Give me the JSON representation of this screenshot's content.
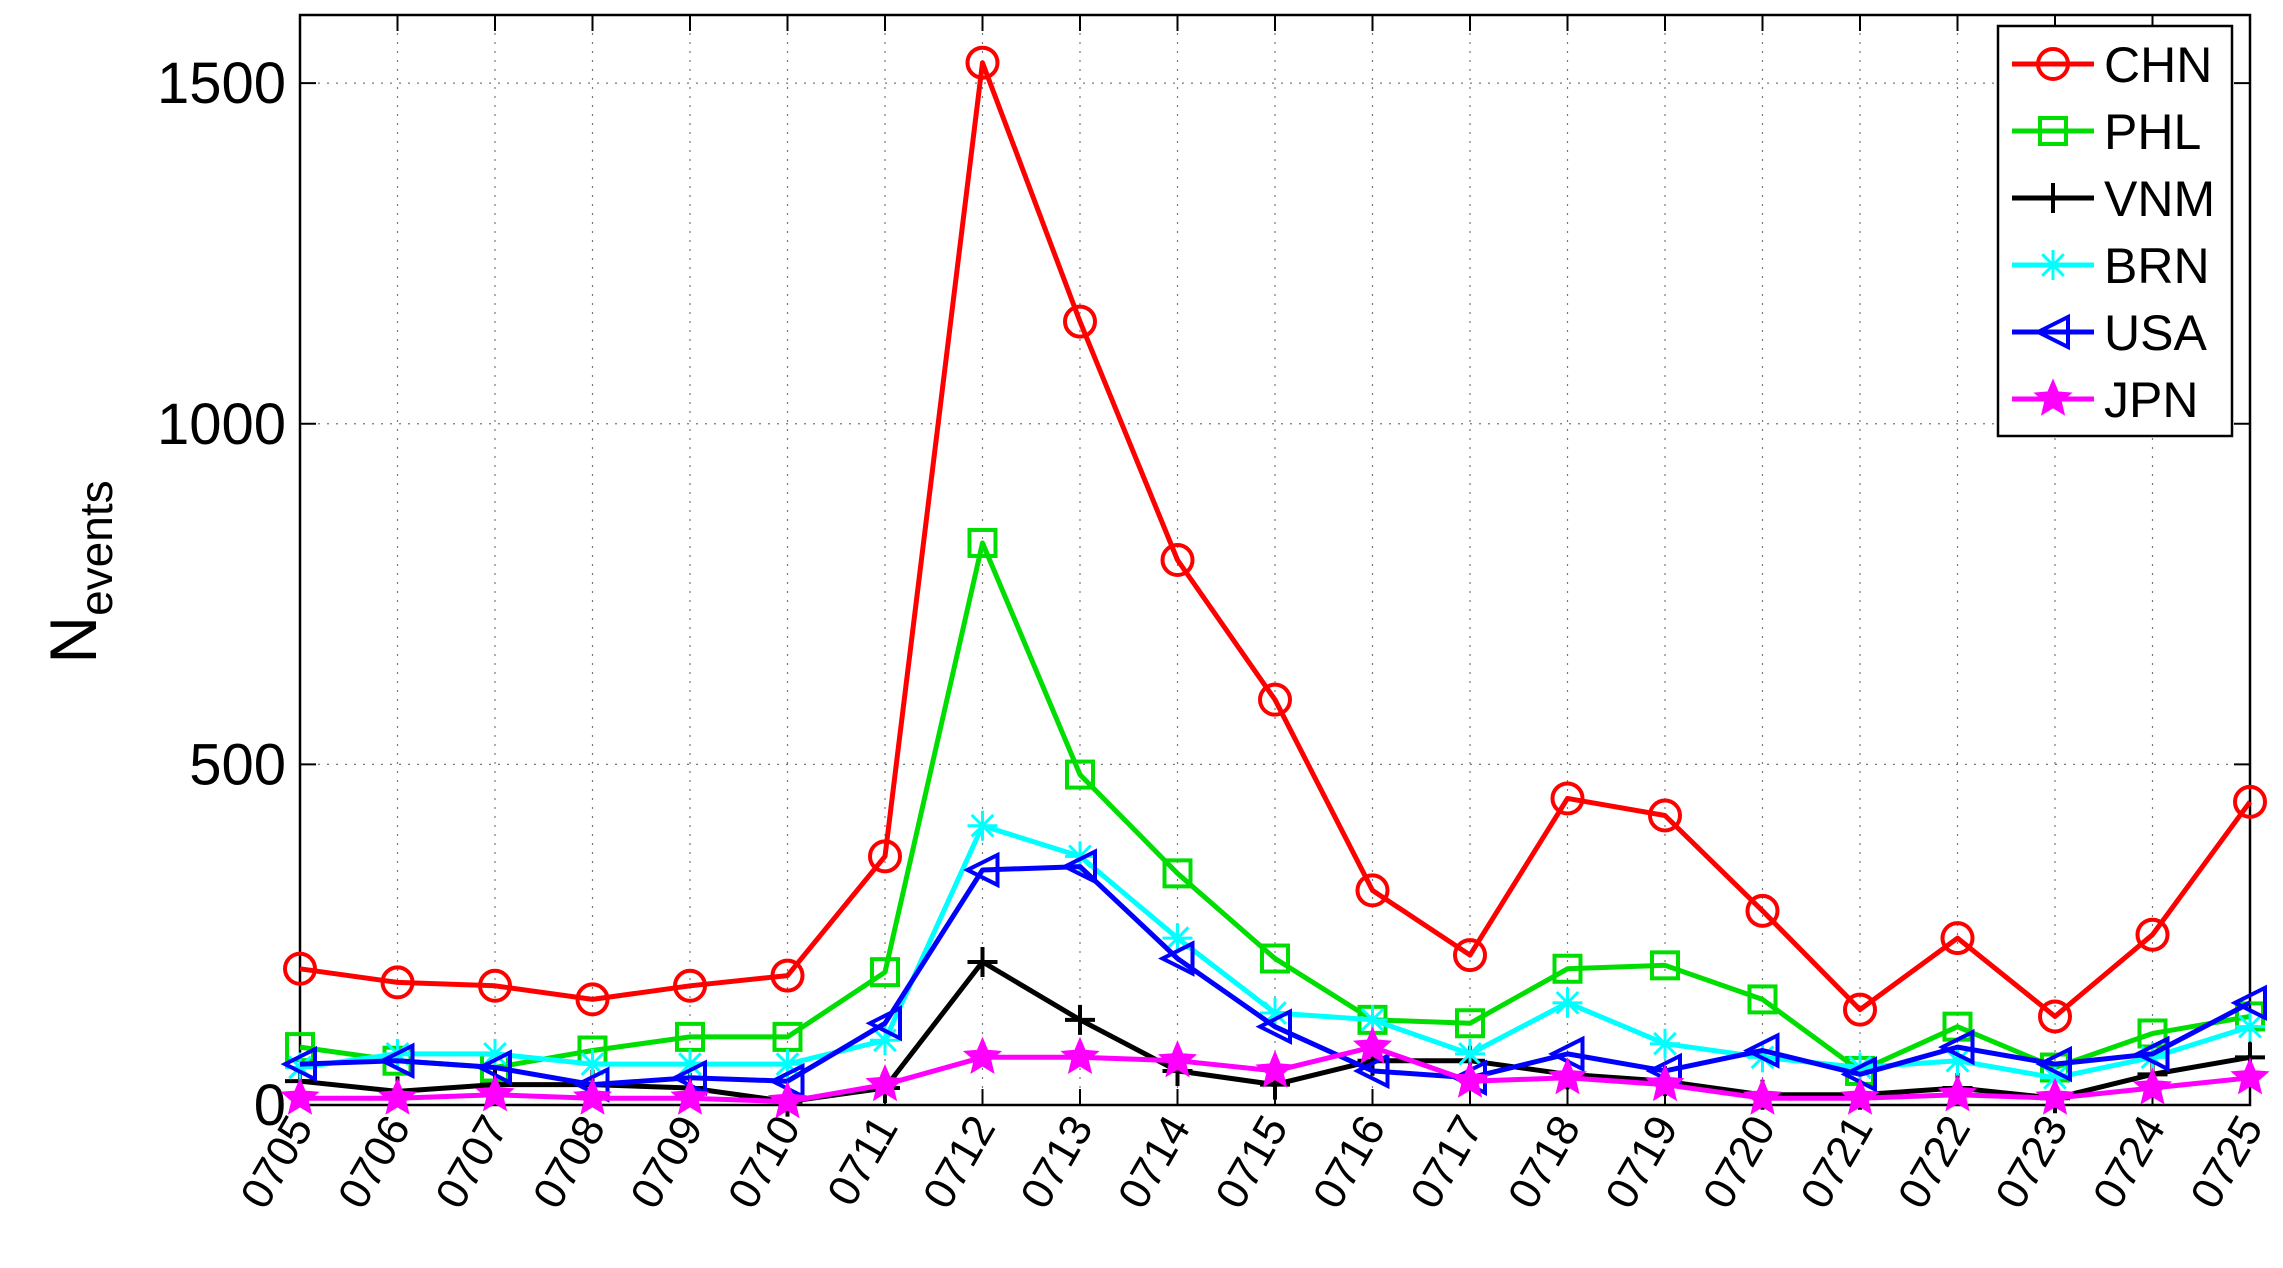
{
  "chart_data": {
    "type": "line",
    "title": "",
    "xlabel": "",
    "ylabel": "N",
    "ylabel_subscript": "events",
    "ylim": [
      0,
      1600
    ],
    "yticks": [
      0,
      500,
      1000,
      1500
    ],
    "grid": true,
    "legend_position": "top-right",
    "categories": [
      "0705",
      "0706",
      "0707",
      "0708",
      "0709",
      "0710",
      "0711",
      "0712",
      "0713",
      "0714",
      "0715",
      "0716",
      "0717",
      "0718",
      "0719",
      "0720",
      "0721",
      "0722",
      "0723",
      "0724",
      "0725"
    ],
    "series": [
      {
        "name": "CHN",
        "color": "#ff0000",
        "marker": "circle",
        "values": [
          200,
          180,
          175,
          155,
          175,
          190,
          365,
          1530,
          1150,
          800,
          595,
          315,
          220,
          450,
          425,
          285,
          140,
          245,
          130,
          250,
          445
        ]
      },
      {
        "name": "PHL",
        "color": "#00dd00",
        "marker": "square",
        "values": [
          85,
          65,
          55,
          80,
          100,
          100,
          195,
          825,
          485,
          340,
          215,
          125,
          120,
          200,
          205,
          155,
          50,
          115,
          55,
          105,
          130
        ]
      },
      {
        "name": "VNM",
        "color": "#000000",
        "marker": "plus",
        "values": [
          35,
          20,
          30,
          30,
          25,
          5,
          25,
          210,
          125,
          50,
          30,
          65,
          65,
          45,
          35,
          15,
          15,
          25,
          10,
          45,
          70
        ]
      },
      {
        "name": "BRN",
        "color": "#00ffff",
        "marker": "asterisk",
        "values": [
          55,
          75,
          75,
          60,
          60,
          60,
          95,
          410,
          365,
          245,
          135,
          125,
          75,
          150,
          90,
          70,
          55,
          65,
          40,
          70,
          115
        ]
      },
      {
        "name": "USA",
        "color": "#0000ff",
        "marker": "triangle-left",
        "values": [
          60,
          65,
          55,
          30,
          40,
          35,
          120,
          345,
          350,
          215,
          115,
          50,
          40,
          75,
          50,
          80,
          45,
          85,
          60,
          75,
          150
        ]
      },
      {
        "name": "JPN",
        "color": "#ff00ff",
        "marker": "star",
        "values": [
          10,
          10,
          15,
          10,
          10,
          5,
          30,
          70,
          70,
          65,
          50,
          85,
          35,
          40,
          30,
          10,
          10,
          15,
          10,
          25,
          40
        ]
      }
    ]
  }
}
